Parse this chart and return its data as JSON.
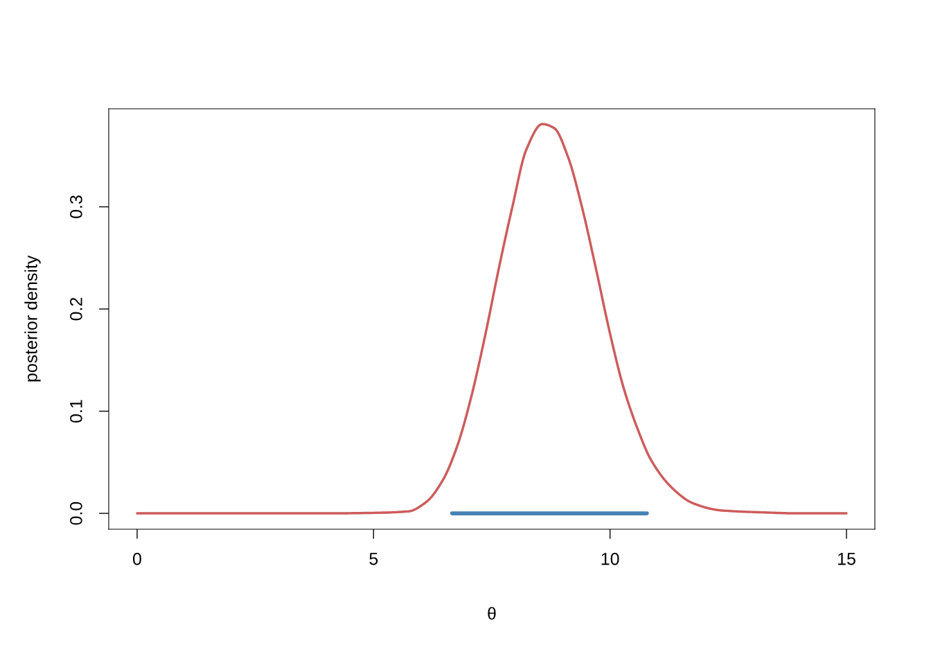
{
  "chart_data": {
    "type": "line",
    "xlabel": "θ",
    "ylabel": "posterior density",
    "xlim": [
      -0.6,
      15.6
    ],
    "ylim": [
      -0.0155,
      0.396
    ],
    "xticks": [
      0,
      5,
      10,
      15
    ],
    "yticks": [
      {
        "value": 0,
        "label": "0.0"
      },
      {
        "value": 0.1,
        "label": "0.1"
      },
      {
        "value": 0.2,
        "label": "0.2"
      },
      {
        "value": 0.3,
        "label": "0.3"
      }
    ],
    "grid": false,
    "marker": "none",
    "line_style": "solid",
    "series": [
      {
        "color": "#cd5c5c",
        "x": [
          0,
          2,
          4,
          5,
          5.74,
          6.11,
          6.47,
          6.77,
          7.06,
          7.35,
          7.65,
          7.94,
          8.23,
          8.57,
          8.82,
          9.11,
          9.4,
          9.7,
          9.99,
          10.28,
          10.58,
          10.87,
          11.31,
          11.75,
          12.33,
          13.21,
          14,
          15
        ],
        "values": [
          0,
          0,
          0,
          0.0005,
          0.002,
          0.011,
          0.033,
          0.066,
          0.113,
          0.172,
          0.24,
          0.301,
          0.356,
          0.381,
          0.377,
          0.349,
          0.301,
          0.24,
          0.178,
          0.124,
          0.083,
          0.052,
          0.025,
          0.01,
          0.003,
          0.001,
          0,
          0
        ]
      },
      {
        "color": "#4682b4",
        "x": [
          6.66,
          10.78
        ],
        "values": [
          0,
          0
        ]
      }
    ]
  }
}
